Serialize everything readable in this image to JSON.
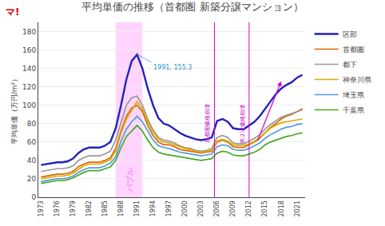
{
  "chart_data": {
    "type": "line",
    "title": "平均単価の推移（首都圏 新築分譲マンション）",
    "y_label": "平均単価（万円/m²）",
    "x": [
      1973,
      1974,
      1975,
      1976,
      1977,
      1978,
      1979,
      1980,
      1981,
      1982,
      1983,
      1984,
      1985,
      1986,
      1987,
      1988,
      1989,
      1990,
      1991,
      1992,
      1993,
      1994,
      1995,
      1996,
      1997,
      1998,
      1999,
      2000,
      2001,
      2002,
      2003,
      2004,
      2005,
      2006,
      2007,
      2008,
      2009,
      2010,
      2011,
      2012,
      2013,
      2014,
      2015,
      2016,
      2017,
      2018,
      2019,
      2020,
      2021,
      2022
    ],
    "series": [
      {
        "name": "区部",
        "color": "#2222bb",
        "values": [
          35,
          36,
          37,
          38,
          38,
          39,
          42,
          48,
          52,
          54,
          54,
          54,
          56,
          60,
          75,
          100,
          128,
          148,
          155,
          140,
          118,
          100,
          86,
          80,
          78,
          74,
          70,
          67,
          65,
          63,
          62,
          63,
          65,
          83,
          85,
          82,
          75,
          74,
          74,
          78,
          82,
          88,
          96,
          105,
          112,
          118,
          122,
          125,
          130,
          133
        ]
      },
      {
        "name": "首都圏",
        "color": "#dd6600",
        "values": [
          22,
          23,
          24,
          25,
          25,
          26,
          28,
          33,
          36,
          38,
          38,
          38,
          40,
          43,
          53,
          72,
          88,
          97,
          100,
          93,
          78,
          67,
          60,
          57,
          57,
          55,
          52,
          51,
          50,
          49,
          48,
          49,
          50,
          60,
          62,
          60,
          55,
          54,
          54,
          57,
          60,
          64,
          70,
          76,
          80,
          85,
          88,
          90,
          93,
          96
        ]
      },
      {
        "name": "都下",
        "color": "#999999",
        "values": [
          28,
          29,
          30,
          31,
          31,
          32,
          34,
          40,
          43,
          45,
          45,
          45,
          47,
          50,
          62,
          82,
          100,
          108,
          110,
          100,
          85,
          73,
          65,
          62,
          61,
          59,
          56,
          54,
          53,
          51,
          50,
          51,
          53,
          65,
          67,
          65,
          59,
          58,
          58,
          61,
          64,
          68,
          74,
          79,
          83,
          87,
          89,
          91,
          93,
          95
        ]
      },
      {
        "name": "神奈川県",
        "color": "#ddaa00",
        "values": [
          20,
          21,
          22,
          23,
          23,
          24,
          26,
          30,
          34,
          36,
          36,
          36,
          38,
          41,
          50,
          70,
          85,
          95,
          104,
          96,
          82,
          71,
          63,
          60,
          59,
          57,
          55,
          53,
          52,
          50,
          49,
          50,
          51,
          61,
          63,
          61,
          57,
          56,
          56,
          58,
          61,
          65,
          70,
          75,
          78,
          81,
          82,
          83,
          84,
          85
        ]
      },
      {
        "name": "埼玉県",
        "color": "#5599dd",
        "values": [
          17,
          18,
          19,
          20,
          20,
          21,
          23,
          27,
          30,
          32,
          32,
          32,
          34,
          37,
          44,
          61,
          74,
          82,
          88,
          82,
          72,
          62,
          56,
          54,
          53,
          51,
          49,
          48,
          47,
          46,
          45,
          46,
          47,
          55,
          57,
          56,
          52,
          51,
          51,
          53,
          56,
          59,
          64,
          68,
          71,
          74,
          76,
          77,
          79,
          80
        ]
      },
      {
        "name": "千葉県",
        "color": "#44aa22",
        "values": [
          15,
          16,
          17,
          18,
          18,
          19,
          21,
          24,
          27,
          29,
          29,
          29,
          31,
          33,
          40,
          54,
          66,
          72,
          78,
          72,
          62,
          54,
          49,
          47,
          46,
          45,
          44,
          43,
          42,
          41,
          40,
          41,
          42,
          48,
          50,
          49,
          46,
          45,
          45,
          47,
          49,
          52,
          57,
          60,
          62,
          64,
          66,
          67,
          69,
          70
        ]
      }
    ],
    "xlim": [
      1972.5,
      2022.5
    ],
    "xticks": [
      1973,
      1976,
      1979,
      1982,
      1985,
      1988,
      1991,
      1994,
      1997,
      2000,
      2003,
      2006,
      2009,
      2012,
      2015,
      2018,
      2021
    ],
    "ylim": [
      0,
      190
    ],
    "yticks": [
      0,
      20,
      40,
      60,
      80,
      100,
      120,
      140,
      160,
      180
    ],
    "grid": "y",
    "legend": "right",
    "spans": [
      {
        "x0": 1987,
        "x1": 1992,
        "label": "バブル",
        "color": "#ff88ff"
      }
    ],
    "vlines": [
      {
        "x": 2005.5,
        "label": "首都圏価格崩壊",
        "color": "#cc00cc"
      },
      {
        "x": 2012.0,
        "label": "第２次価格崩壊",
        "color": "#cc00cc"
      }
    ],
    "annotations": [
      {
        "text": "1991, 155.3",
        "x": 1991,
        "y": 155.3
      }
    ],
    "arrows": [
      {
        "x_from": 2013.5,
        "y_from": 60,
        "x": 2018,
        "y": 126,
        "color": "#cc00cc"
      }
    ],
    "logo": {
      "text": "マ!",
      "color": "#cc0000"
    }
  }
}
